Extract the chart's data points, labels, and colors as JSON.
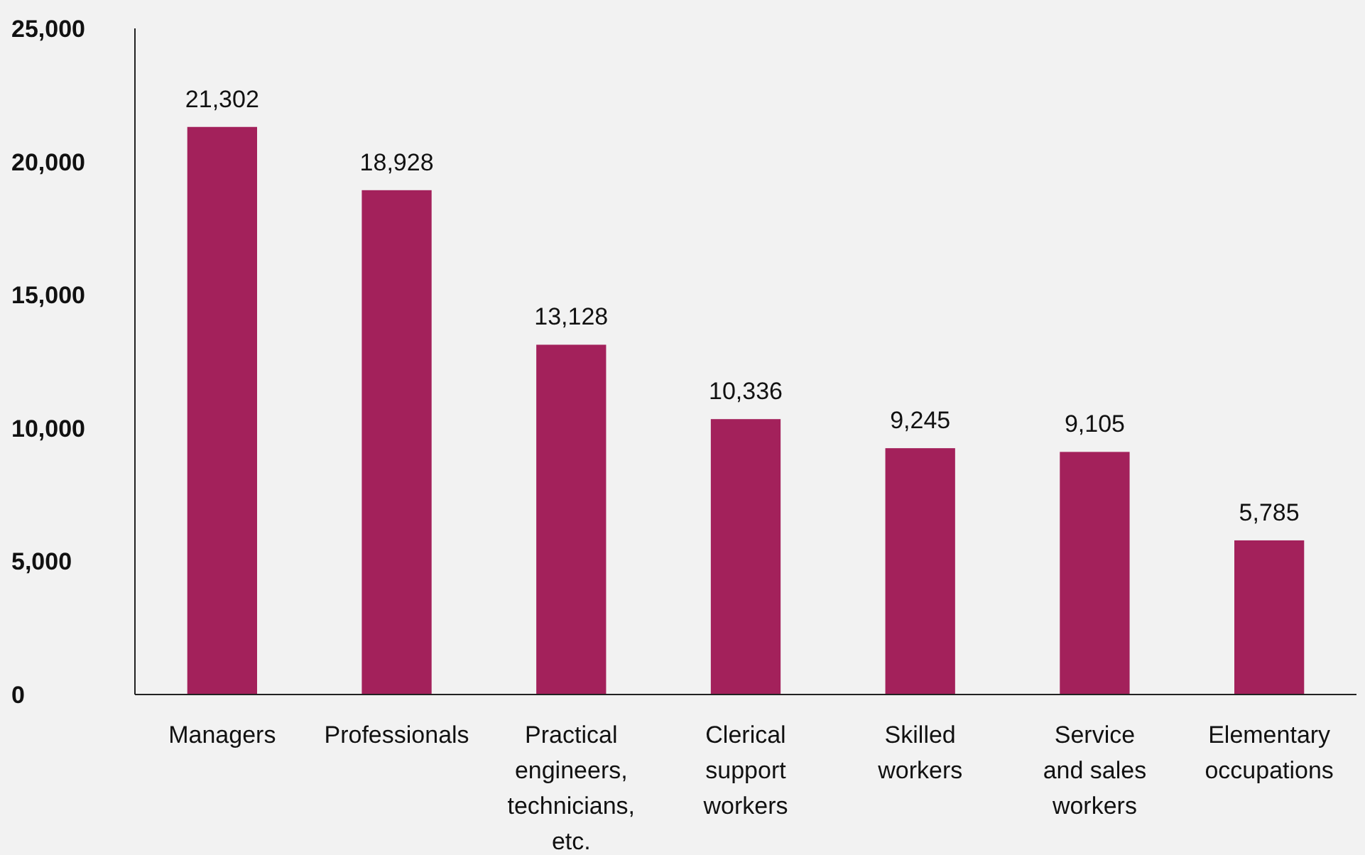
{
  "chart_data": {
    "type": "bar",
    "categories": [
      "Managers",
      "Professionals",
      "Practical\nengineers,\ntechnicians,\netc.",
      "Clerical\nsupport\nworkers",
      "Skilled\nworkers",
      "Service\nand sales\nworkers",
      "Elementary\noccupations"
    ],
    "values": [
      21302,
      18928,
      13128,
      10336,
      9245,
      9105,
      5785
    ],
    "color": "#a3215b",
    "ylim": [
      0,
      25000
    ],
    "yticks": [
      {
        "value": 0,
        "label": "0"
      },
      {
        "value": 5000,
        "label": "5,000"
      },
      {
        "value": 10000,
        "label": "10,000"
      },
      {
        "value": 15000,
        "label": "15,000"
      },
      {
        "value": 20000,
        "label": "20,000"
      },
      {
        "value": 25000,
        "label": "25,000"
      }
    ],
    "value_labels": [
      "21,302",
      "18,928",
      "13,128",
      "10,336",
      "9,245",
      "9,105",
      "5,785"
    ],
    "grid": false
  }
}
